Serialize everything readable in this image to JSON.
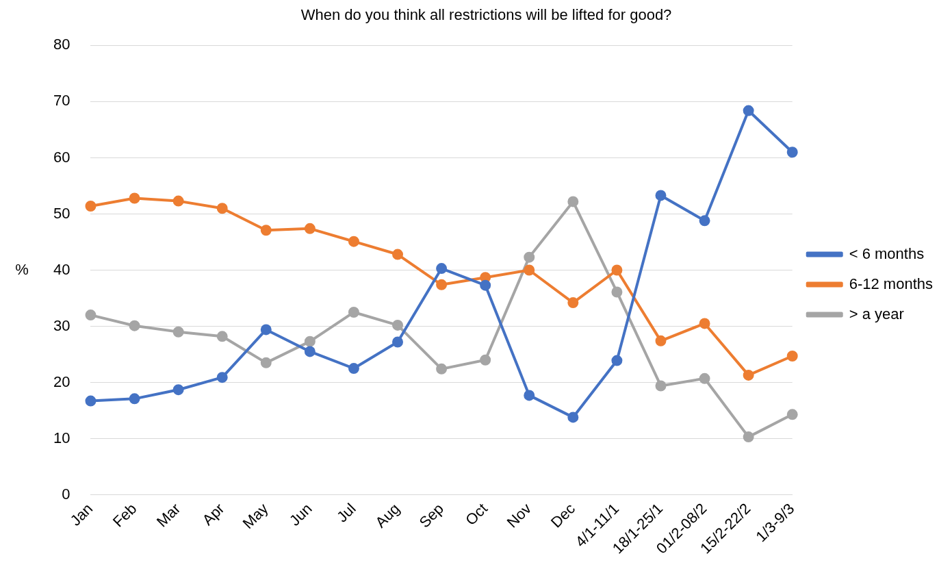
{
  "chart_data": {
    "type": "line",
    "title": "When do you think all restrictions will be lifted for good?",
    "ylabel": "%",
    "categories": [
      "Jan",
      "Feb",
      "Mar",
      "Apr",
      "May",
      "Jun",
      "Jul",
      "Aug",
      "Sep",
      "Oct",
      "Nov",
      "Dec",
      "4/1-11/1",
      "18/1-25/1",
      "01/2-08/2",
      "15/2-22/2",
      "1/3-9/3"
    ],
    "series": [
      {
        "name": "< 6 months",
        "color": "#4472c4",
        "values": [
          16.7,
          17.1,
          18.7,
          20.9,
          29.4,
          25.5,
          22.5,
          27.2,
          40.3,
          37.3,
          17.7,
          13.8,
          23.9,
          53.3,
          48.8,
          68.4,
          61.0
        ]
      },
      {
        "name": "6-12 months",
        "color": "#ed7d31",
        "values": [
          51.4,
          52.8,
          52.3,
          51.0,
          47.1,
          47.4,
          45.1,
          42.8,
          37.4,
          38.7,
          40.0,
          34.2,
          40.0,
          27.4,
          30.5,
          21.3,
          24.7
        ]
      },
      {
        "name": "> a year",
        "color": "#a5a5a5",
        "values": [
          32.0,
          30.1,
          29.0,
          28.2,
          23.5,
          27.3,
          32.5,
          30.2,
          22.4,
          24.0,
          42.3,
          52.2,
          36.1,
          19.4,
          20.7,
          10.3,
          14.3
        ]
      }
    ],
    "ylim": [
      0,
      80
    ],
    "yticks": [
      0,
      10,
      20,
      30,
      40,
      50,
      60,
      70,
      80
    ],
    "grid": "y",
    "legend": "right",
    "marker": "circle",
    "line_style": "solid"
  }
}
